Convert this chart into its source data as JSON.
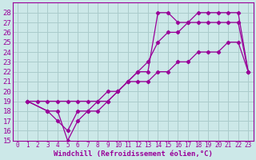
{
  "xlabel": "Windchill (Refroidissement éolien,°C)",
  "bg_color": "#cce8e8",
  "grid_color": "#aacccc",
  "line_color": "#990099",
  "xlim": [
    -0.5,
    23.5
  ],
  "ylim": [
    15,
    29
  ],
  "xticks": [
    0,
    1,
    2,
    3,
    4,
    5,
    6,
    7,
    8,
    9,
    10,
    11,
    12,
    13,
    14,
    15,
    16,
    17,
    18,
    19,
    20,
    21,
    22,
    23
  ],
  "yticks": [
    15,
    16,
    17,
    18,
    19,
    20,
    21,
    22,
    23,
    24,
    25,
    26,
    27,
    28
  ],
  "line1_x": [
    1,
    3,
    4,
    5,
    6,
    7,
    8,
    9,
    10,
    11,
    12,
    13,
    14,
    15,
    16,
    17,
    18,
    19,
    20,
    21,
    22,
    23
  ],
  "line1_y": [
    19,
    18,
    18,
    15,
    17,
    18,
    18,
    19,
    20,
    21,
    22,
    22,
    28,
    28,
    27,
    27,
    28,
    28,
    28,
    28,
    28,
    22
  ],
  "line2_x": [
    1,
    3,
    4,
    5,
    6,
    7,
    8,
    9,
    10,
    11,
    12,
    13,
    14,
    15,
    16,
    17,
    18,
    19,
    20,
    21,
    22,
    23
  ],
  "line2_y": [
    19,
    18,
    17,
    16,
    18,
    18,
    19,
    19,
    20,
    21,
    22,
    23,
    25,
    26,
    26,
    27,
    27,
    27,
    27,
    27,
    27,
    22
  ],
  "line3_x": [
    1,
    2,
    3,
    4,
    5,
    6,
    7,
    8,
    9,
    10,
    11,
    12,
    13,
    14,
    15,
    16,
    17,
    18,
    19,
    20,
    21,
    22,
    23
  ],
  "line3_y": [
    19,
    19,
    19,
    19,
    19,
    19,
    19,
    19,
    20,
    20,
    21,
    21,
    21,
    22,
    22,
    23,
    23,
    24,
    24,
    24,
    25,
    25,
    22
  ],
  "font_size_xlabel": 6.5,
  "font_size_yticks": 6.5,
  "font_size_xticks": 5.5
}
